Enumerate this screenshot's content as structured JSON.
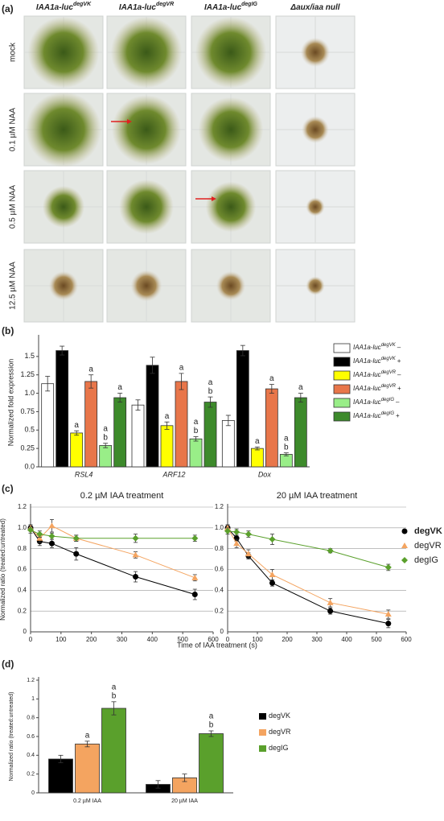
{
  "panel_a": {
    "label": "(a)",
    "columns": [
      {
        "text": "IAA1a-luc",
        "sup": "degVK"
      },
      {
        "text": "IAA1a-luc",
        "sup": "degVR"
      },
      {
        "text": "IAA1a-luc",
        "sup": "degIG"
      },
      {
        "text": "Δaux/iaa null"
      }
    ],
    "rows": [
      "mock",
      "0.1 µM NAA",
      "0.5 µM NAA",
      "12.5 µM NAA"
    ]
  },
  "chart_data": [
    {
      "type": "bar",
      "panel_label": "(b)",
      "y_label": "Normalized fold expression",
      "categories": [
        "RSL4",
        "ARF12",
        "Dox"
      ],
      "ylim": [
        0,
        1.75
      ],
      "yticks": [
        {
          "value": 0,
          "label": "0.0"
        },
        0.25,
        0.5,
        0.75,
        {
          "value": 1,
          "label": "1.0"
        },
        1.25,
        1.5
      ],
      "legend": "right",
      "series": [
        {
          "name": "IAA1a-luc",
          "name_sup": "degVK",
          "name_suffix": "–",
          "color": "#ffffff",
          "values": [
            1.13,
            0.84,
            0.63
          ],
          "errors": [
            0.1,
            0.07,
            0.07
          ]
        },
        {
          "name": "IAA1a-luc",
          "name_sup": "degVK",
          "name_suffix": "+",
          "color": "#000000",
          "values": [
            1.58,
            1.38,
            1.58
          ],
          "errors": [
            0.06,
            0.11,
            0.07
          ]
        },
        {
          "name": "IAA1a-luc",
          "name_sup": "degVR",
          "name_suffix": "–",
          "color": "#ffff00",
          "values": [
            0.46,
            0.56,
            0.25
          ],
          "errors": [
            0.03,
            0.05,
            0.02
          ],
          "annotations": [
            [
              "a"
            ],
            [
              "a"
            ],
            [
              "a"
            ]
          ]
        },
        {
          "name": "IAA1a-luc",
          "name_sup": "degVR",
          "name_suffix": "+",
          "color": "#e8764a",
          "values": [
            1.16,
            1.16,
            1.06
          ],
          "errors": [
            0.09,
            0.11,
            0.06
          ],
          "annotations": [
            [
              "a"
            ],
            [
              "a"
            ],
            [
              "a"
            ]
          ]
        },
        {
          "name": "IAA1a-luc",
          "name_sup": "degIG",
          "name_suffix": "–",
          "color": "#99ee88",
          "values": [
            0.29,
            0.38,
            0.17
          ],
          "errors": [
            0.03,
            0.03,
            0.02
          ],
          "annotations": [
            [
              "a",
              "b"
            ],
            [
              "a",
              "b"
            ],
            [
              "a",
              "b"
            ]
          ]
        },
        {
          "name": "IAA1a-luc",
          "name_sup": "degIG",
          "name_suffix": "+",
          "color": "#3d8a2b",
          "values": [
            0.94,
            0.88,
            0.94
          ],
          "errors": [
            0.06,
            0.07,
            0.06
          ],
          "annotations": [
            [
              "a"
            ],
            [
              "a",
              "b"
            ],
            [
              "a"
            ]
          ]
        }
      ]
    },
    {
      "type": "line",
      "panel_label": "(c)",
      "title": "0.2 µM IAA treatment",
      "y_label": "Normalized ratio (treated:untreated)",
      "x": [
        0,
        30,
        70,
        150,
        345,
        540
      ],
      "xlim": [
        0,
        600
      ],
      "xticks": [
        0,
        100,
        200,
        300,
        400,
        500,
        600
      ],
      "ylim": [
        0,
        1.2
      ],
      "yticks": [
        0,
        0.2,
        0.4,
        0.6,
        0.8,
        {
          "value": 1,
          "label": "1.0"
        },
        1.2
      ],
      "grid": true,
      "series": [
        {
          "color": "#000000",
          "marker": "circle",
          "values": [
            1.0,
            0.87,
            0.85,
            0.75,
            0.53,
            0.36
          ],
          "errors": [
            0.03,
            0.04,
            0.04,
            0.06,
            0.05,
            0.05
          ]
        },
        {
          "color": "#f4a460",
          "marker": "triangle",
          "values": [
            1.0,
            0.9,
            1.02,
            0.9,
            0.74,
            0.52
          ],
          "errors": [
            0.03,
            0.04,
            0.06,
            0.03,
            0.03,
            0.03
          ]
        },
        {
          "color": "#5aa02c",
          "marker": "diamond",
          "values": [
            0.98,
            0.94,
            0.92,
            0.9,
            0.9,
            0.9
          ],
          "errors": [
            0.03,
            0.03,
            0.03,
            0.03,
            0.04,
            0.03
          ]
        }
      ]
    },
    {
      "type": "line",
      "title": "20 µM IAA treatment",
      "x_label": "Time of IAA treatment (s)",
      "x": [
        0,
        30,
        70,
        150,
        345,
        540
      ],
      "xlim": [
        0,
        600
      ],
      "xticks": [
        0,
        100,
        200,
        300,
        400,
        500,
        600
      ],
      "ylim": [
        0,
        1.2
      ],
      "yticks": [
        0,
        0.2,
        0.4,
        0.6,
        0.8,
        {
          "value": 1,
          "label": "1.0"
        },
        1.2
      ],
      "grid": true,
      "legend": "right",
      "series": [
        {
          "name": "degVK",
          "color": "#000000",
          "marker": "circle",
          "values": [
            1.0,
            0.9,
            0.73,
            0.47,
            0.2,
            0.08
          ],
          "errors": [
            0.03,
            0.03,
            0.03,
            0.03,
            0.03,
            0.04
          ]
        },
        {
          "name": "degVR",
          "color": "#f4a460",
          "marker": "triangle",
          "values": [
            1.0,
            0.85,
            0.75,
            0.55,
            0.28,
            0.17
          ],
          "errors": [
            0.03,
            0.04,
            0.04,
            0.05,
            0.04,
            0.04
          ]
        },
        {
          "name": "degIG",
          "color": "#5aa02c",
          "marker": "diamond",
          "values": [
            0.97,
            0.96,
            0.94,
            0.89,
            0.78,
            0.62
          ],
          "errors": [
            0.03,
            0.03,
            0.03,
            0.05,
            0.02,
            0.03
          ]
        }
      ]
    },
    {
      "type": "bar",
      "panel_label": "(d)",
      "y_label": "Normalized ratio (treated:untreated)",
      "categories": [
        "0.2 µM IAA",
        "20 µM IAA"
      ],
      "ylim": [
        0,
        1.2
      ],
      "yticks": [
        0,
        0.2,
        0.4,
        0.6,
        0.8,
        1,
        1.2
      ],
      "legend": "right",
      "series": [
        {
          "name": "degVK",
          "color": "#000000",
          "values": [
            0.36,
            0.09
          ],
          "errors": [
            0.04,
            0.04
          ]
        },
        {
          "name": "degVR",
          "color": "#f4a460",
          "values": [
            0.52,
            0.16
          ],
          "errors": [
            0.03,
            0.04
          ],
          "annotations": [
            [
              "a"
            ]
          ]
        },
        {
          "name": "degIG",
          "color": "#5aa02c",
          "values": [
            0.9,
            0.63
          ],
          "errors": [
            0.07,
            0.03
          ],
          "annotations": [
            [
              "a",
              "b"
            ],
            [
              "a",
              "b"
            ]
          ]
        }
      ]
    }
  ]
}
